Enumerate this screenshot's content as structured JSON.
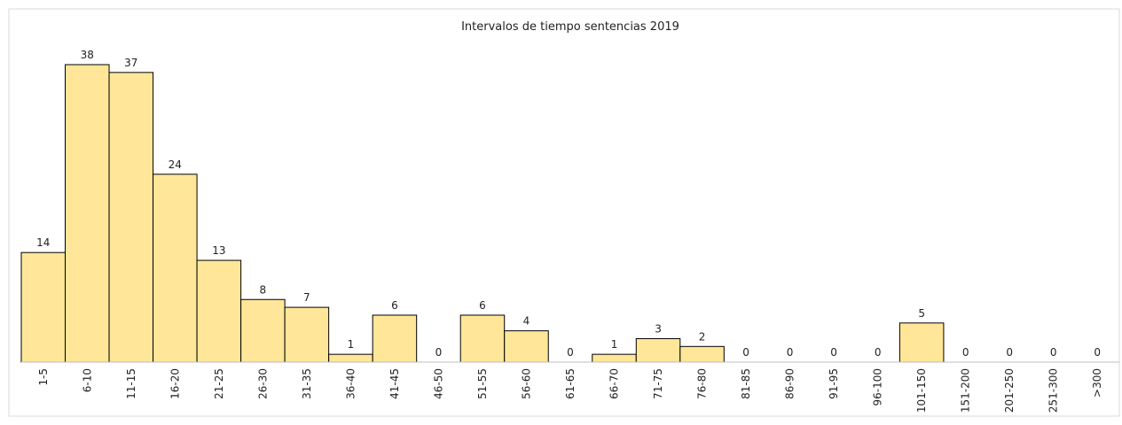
{
  "chart_data": {
    "type": "bar",
    "title": "Intervalos de tiempo sentencias 2019",
    "categories": [
      "1-5",
      "6-10",
      "11-15",
      "16-20",
      "21-25",
      "26-30",
      "31-35",
      "36-40",
      "41-45",
      "46-50",
      "51-55",
      "56-60",
      "61-65",
      "66-70",
      "71-75",
      "76-80",
      "81-85",
      "86-90",
      "91-95",
      "96-100",
      "101-150",
      "151-200",
      "201-250",
      "251-300",
      ">300"
    ],
    "values": [
      14,
      38,
      37,
      24,
      13,
      8,
      7,
      1,
      6,
      0,
      6,
      4,
      0,
      1,
      3,
      2,
      0,
      0,
      0,
      0,
      5,
      0,
      0,
      0,
      0
    ],
    "color": "#ffe699"
  }
}
